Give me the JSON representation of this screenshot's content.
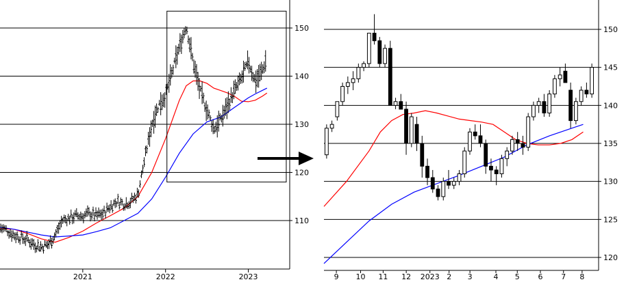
{
  "chart_data": [
    {
      "type": "ohlc",
      "title": "",
      "xlabel": "",
      "ylabel": "",
      "x_ticks": [
        {
          "label": "2021",
          "t": 12
        },
        {
          "label": "2022",
          "t": 24
        },
        {
          "label": "2023",
          "t": 36
        }
      ],
      "y_ticks": [
        110,
        120,
        130,
        140,
        150
      ],
      "ylim": [
        100,
        155
      ],
      "xlim": [
        0,
        42
      ],
      "grid": true,
      "zoom_box": {
        "t0": 24.2,
        "t1": 41.5,
        "y0": 118,
        "y1": 153.5
      },
      "price_path": [
        [
          0,
          108.5
        ],
        [
          1,
          108
        ],
        [
          2,
          107
        ],
        [
          3,
          106.5
        ],
        [
          4,
          106
        ],
        [
          5,
          105
        ],
        [
          6,
          104.5
        ],
        [
          7,
          105
        ],
        [
          8,
          107
        ],
        [
          9,
          110
        ],
        [
          10,
          110.5
        ],
        [
          11,
          111
        ],
        [
          12,
          111
        ],
        [
          13,
          111.5
        ],
        [
          14,
          111
        ],
        [
          15,
          111.5
        ],
        [
          16,
          113
        ],
        [
          17,
          114
        ],
        [
          18,
          113.5
        ],
        [
          19,
          114
        ],
        [
          20,
          115.5
        ],
        [
          21,
          123
        ],
        [
          22,
          130
        ],
        [
          23,
          134
        ],
        [
          24,
          136
        ],
        [
          25,
          141
        ],
        [
          26,
          146
        ],
        [
          27,
          150.5
        ],
        [
          28,
          143
        ],
        [
          29,
          137
        ],
        [
          30,
          133
        ],
        [
          31,
          129
        ],
        [
          32,
          131
        ],
        [
          33,
          134
        ],
        [
          34,
          137
        ],
        [
          35,
          139.5
        ],
        [
          36,
          143
        ],
        [
          37,
          139
        ],
        [
          38,
          141
        ],
        [
          38.7,
          144
        ]
      ],
      "series": [
        {
          "name": "",
          "color": "#ff0000",
          "points": [
            [
              0,
              108.3
            ],
            [
              2,
              108.2
            ],
            [
              4,
              107.3
            ],
            [
              6,
              106.2
            ],
            [
              8,
              105.5
            ],
            [
              10,
              106.5
            ],
            [
              12,
              107.8
            ],
            [
              14,
              109.5
            ],
            [
              16,
              111
            ],
            [
              18,
              112.6
            ],
            [
              20,
              115
            ],
            [
              22,
              120
            ],
            [
              24,
              127
            ],
            [
              26,
              135
            ],
            [
              27,
              138
            ],
            [
              28,
              139
            ],
            [
              29,
              139
            ],
            [
              30,
              138.5
            ],
            [
              31,
              137.5
            ],
            [
              32,
              137
            ],
            [
              33,
              136.5
            ],
            [
              34,
              135.8
            ],
            [
              35,
              134.8
            ],
            [
              36,
              134.7
            ],
            [
              37,
              135
            ],
            [
              38,
              135.8
            ],
            [
              38.7,
              136.5
            ]
          ]
        },
        {
          "name": "",
          "color": "#0000ff",
          "points": [
            [
              0,
              108.6
            ],
            [
              2,
              108.2
            ],
            [
              4,
              107.6
            ],
            [
              6,
              107
            ],
            [
              8,
              106.6
            ],
            [
              10,
              106.8
            ],
            [
              12,
              107
            ],
            [
              14,
              107.7
            ],
            [
              16,
              108.5
            ],
            [
              18,
              110
            ],
            [
              20,
              111.5
            ],
            [
              22,
              114.5
            ],
            [
              24,
              119
            ],
            [
              26,
              124
            ],
            [
              28,
              128
            ],
            [
              30,
              130.5
            ],
            [
              32,
              131.5
            ],
            [
              33,
              132.5
            ],
            [
              34,
              133.5
            ],
            [
              35,
              134.5
            ],
            [
              36,
              135.5
            ],
            [
              37,
              136.3
            ],
            [
              38,
              137
            ],
            [
              38.7,
              137.5
            ]
          ]
        }
      ]
    },
    {
      "type": "candlestick",
      "title": "",
      "xlabel": "",
      "ylabel": "",
      "x_ticks": [
        {
          "label": "9",
          "t": 2.2
        },
        {
          "label": "10",
          "t": 6.5
        },
        {
          "label": "11",
          "t": 10.5
        },
        {
          "label": "12",
          "t": 14.6
        },
        {
          "label": "2023",
          "t": 18.8
        },
        {
          "label": "2",
          "t": 22.2
        },
        {
          "label": "3",
          "t": 25.9
        },
        {
          "label": "4",
          "t": 30.5
        },
        {
          "label": "5",
          "t": 34.3
        },
        {
          "label": "6",
          "t": 38.4
        },
        {
          "label": "7",
          "t": 42.5
        },
        {
          "label": "8",
          "t": 45.8
        }
      ],
      "y_ticks": [
        120,
        125,
        130,
        135,
        140,
        145,
        150
      ],
      "ylim": [
        118,
        153.5
      ],
      "xlim": [
        0,
        48
      ],
      "grid": true,
      "candles": [
        [
          133.5,
          137.5,
          133,
          137
        ],
        [
          137,
          138,
          136.5,
          137.5
        ],
        [
          138.5,
          140.5,
          138,
          140.5
        ],
        [
          140.5,
          143,
          140,
          142.5
        ],
        [
          142.5,
          143.8,
          141.5,
          143
        ],
        [
          143,
          144.5,
          142,
          143.5
        ],
        [
          143.5,
          145.5,
          143,
          145
        ],
        [
          145,
          145.8,
          144.5,
          145.5
        ],
        [
          145.5,
          149.5,
          145,
          149.5
        ],
        [
          149.5,
          152,
          148,
          148.5
        ],
        [
          148.5,
          149,
          145,
          145.5
        ],
        [
          145.5,
          148,
          145,
          147.5
        ],
        [
          147.5,
          148.5,
          140,
          140
        ],
        [
          140,
          141,
          139.5,
          140.5
        ],
        [
          140.5,
          141.5,
          139.5,
          139.5
        ],
        [
          139.5,
          140.5,
          133.5,
          135
        ],
        [
          135,
          139,
          134.5,
          138.5
        ],
        [
          137.5,
          138.5,
          134,
          135
        ],
        [
          135,
          136,
          130.5,
          132
        ],
        [
          132,
          133,
          129.5,
          130.5
        ],
        [
          130.5,
          131.5,
          128.5,
          129
        ],
        [
          129,
          129.5,
          127.5,
          128
        ],
        [
          128,
          130.5,
          127.5,
          130
        ],
        [
          130,
          131.5,
          129,
          129.5
        ],
        [
          129.5,
          130.5,
          129,
          130
        ],
        [
          130,
          131.5,
          129.5,
          131
        ],
        [
          131,
          134.5,
          130.5,
          134
        ],
        [
          134,
          137,
          133.5,
          136.5
        ],
        [
          136.5,
          137.5,
          135.5,
          136
        ],
        [
          136,
          137.5,
          134.5,
          135
        ],
        [
          135,
          135.5,
          131,
          132
        ],
        [
          132,
          133,
          130,
          131.5
        ],
        [
          131.5,
          132,
          129.5,
          131
        ],
        [
          131,
          133.5,
          130.5,
          133
        ],
        [
          133,
          134.5,
          132,
          134
        ],
        [
          134,
          136,
          133.5,
          135.5
        ],
        [
          135.5,
          136.5,
          134,
          135
        ],
        [
          135,
          136,
          133.5,
          134.5
        ],
        [
          134.5,
          139,
          134,
          138.5
        ],
        [
          138.5,
          140.5,
          138,
          140
        ],
        [
          140,
          141,
          139,
          140.5
        ],
        [
          140.5,
          141.5,
          138.5,
          139
        ],
        [
          139,
          142,
          138.5,
          141.5
        ],
        [
          141.5,
          144,
          141,
          143.5
        ],
        [
          143.5,
          145,
          142.5,
          144
        ],
        [
          144.5,
          145.5,
          143,
          143
        ],
        [
          142,
          143,
          137,
          138
        ],
        [
          138,
          141,
          137.5,
          140.5
        ],
        [
          140.5,
          142.5,
          140,
          142
        ],
        [
          142,
          143,
          141,
          141.5
        ],
        [
          141.5,
          145.5,
          141,
          145
        ]
      ],
      "series": [
        {
          "name": "",
          "color": "#ff0000",
          "points": [
            [
              0,
              126.7
            ],
            [
              4,
              130
            ],
            [
              8,
              134
            ],
            [
              10,
              136.5
            ],
            [
              12,
              138
            ],
            [
              14,
              138.8
            ],
            [
              16,
              139
            ],
            [
              18,
              139.3
            ],
            [
              20,
              139
            ],
            [
              22,
              138.6
            ],
            [
              24,
              138.2
            ],
            [
              26,
              138
            ],
            [
              28,
              137.8
            ],
            [
              30,
              137.5
            ],
            [
              32,
              136.5
            ],
            [
              34,
              135.5
            ],
            [
              36,
              135
            ],
            [
              38,
              134.8
            ],
            [
              40,
              134.8
            ],
            [
              42,
              135
            ],
            [
              44,
              135.5
            ],
            [
              46,
              136.5
            ]
          ]
        },
        {
          "name": "",
          "color": "#0000ff",
          "points": [
            [
              0,
              119.2
            ],
            [
              4,
              122
            ],
            [
              8,
              124.8
            ],
            [
              12,
              127
            ],
            [
              16,
              128.6
            ],
            [
              20,
              129.7
            ],
            [
              24,
              130.8
            ],
            [
              28,
              132
            ],
            [
              32,
              133.2
            ],
            [
              36,
              134.8
            ],
            [
              40,
              136
            ],
            [
              44,
              137
            ],
            [
              46,
              137.5
            ]
          ]
        }
      ]
    }
  ]
}
